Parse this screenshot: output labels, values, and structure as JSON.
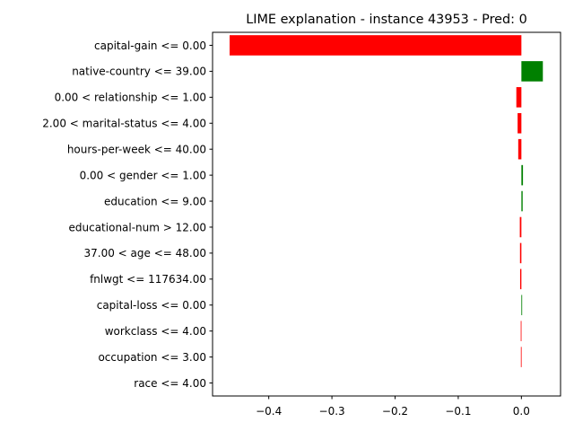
{
  "chart_data": {
    "type": "bar",
    "orientation": "horizontal",
    "title": "LIME explanation - instance 43953 - Pred: 0",
    "xlabel": "",
    "ylabel": "",
    "xlim": [
      -0.489,
      0.062
    ],
    "xticks": [
      -0.4,
      -0.3,
      -0.2,
      -0.1,
      0.0
    ],
    "xtick_labels": [
      "−0.4",
      "−0.3",
      "−0.2",
      "−0.1",
      "0.0"
    ],
    "grid": false,
    "positive_color": "#008000",
    "negative_color": "#ff0000",
    "categories": [
      "capital-gain <= 0.00",
      "native-country <= 39.00",
      "0.00 < relationship <= 1.00",
      "2.00 < marital-status <= 4.00",
      "hours-per-week <= 40.00",
      "0.00 < gender <= 1.00",
      "education <= 9.00",
      "educational-num > 12.00",
      "37.00 < age <= 48.00",
      "fnlwgt <= 117634.00",
      "capital-loss <= 0.00",
      "workclass <= 4.00",
      "occupation <= 3.00",
      "race <= 4.00"
    ],
    "values": [
      -0.462,
      0.034,
      -0.008,
      -0.006,
      -0.005,
      0.0025,
      0.002,
      -0.0025,
      -0.0022,
      -0.002,
      0.0012,
      -0.001,
      -0.0008,
      0.0
    ]
  }
}
